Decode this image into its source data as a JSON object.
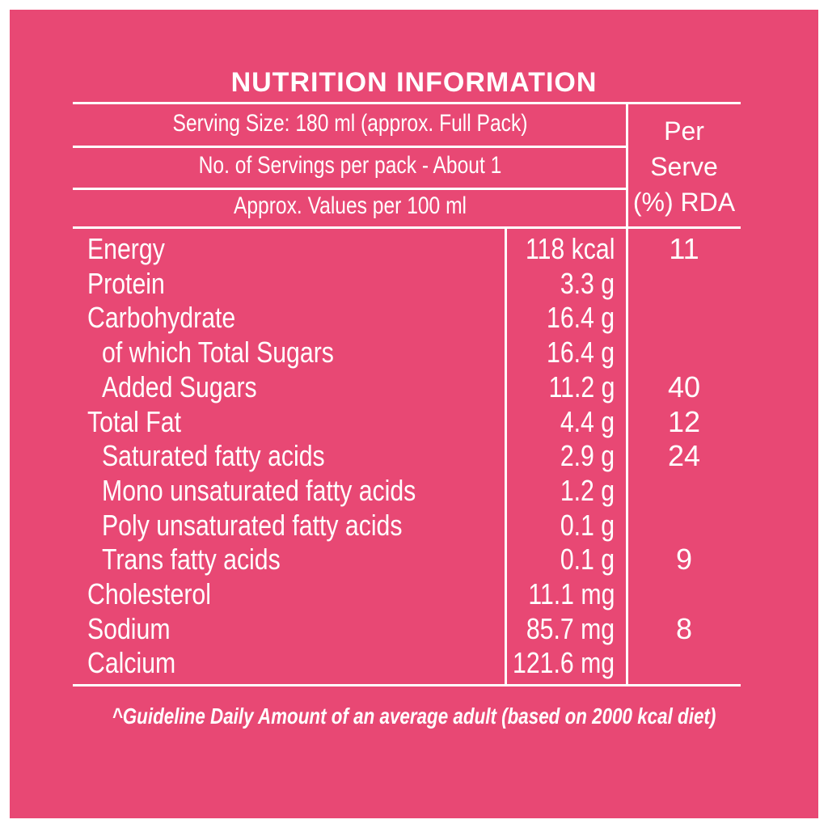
{
  "title": "NUTRITION INFORMATION",
  "header": {
    "serving_size": "Serving Size: 180 ml (approx. Full Pack)",
    "servings_per_pack": "No. of Servings per pack - About 1",
    "values_basis": "Approx. Values per 100 ml",
    "rda_header": "Per\nServe\n(%) RDA"
  },
  "rows": [
    {
      "name": "Energy",
      "value": "118 kcal",
      "rda": "11",
      "indent": 0
    },
    {
      "name": "Protein",
      "value": "3.3 g",
      "rda": "",
      "indent": 0
    },
    {
      "name": "Carbohydrate",
      "value": "16.4 g",
      "rda": "",
      "indent": 0
    },
    {
      "name": "of which Total Sugars",
      "value": "16.4 g",
      "rda": "",
      "indent": 1
    },
    {
      "name": "Added Sugars",
      "value": "11.2 g",
      "rda": "40",
      "indent": 1
    },
    {
      "name": "Total Fat",
      "value": "4.4 g",
      "rda": "12",
      "indent": 0
    },
    {
      "name": "Saturated fatty acids",
      "value": "2.9 g",
      "rda": "24",
      "indent": 1
    },
    {
      "name": "Mono unsaturated fatty acids",
      "value": "1.2 g",
      "rda": "",
      "indent": 1
    },
    {
      "name": "Poly unsaturated fatty acids",
      "value": "0.1 g",
      "rda": "",
      "indent": 1
    },
    {
      "name": "Trans fatty acids",
      "value": "0.1 g",
      "rda": "9",
      "indent": 1
    },
    {
      "name": "Cholesterol",
      "value": "11.1 mg",
      "rda": "",
      "indent": 0
    },
    {
      "name": "Sodium",
      "value": "85.7 mg",
      "rda": "8",
      "indent": 0
    },
    {
      "name": "Calcium",
      "value": "121.6 mg",
      "rda": "",
      "indent": 0
    }
  ],
  "footnote": "^Guideline Daily Amount of an average adult (based on 2000 kcal diet)",
  "colors": {
    "background": "#e84874",
    "text": "#ffffff"
  }
}
